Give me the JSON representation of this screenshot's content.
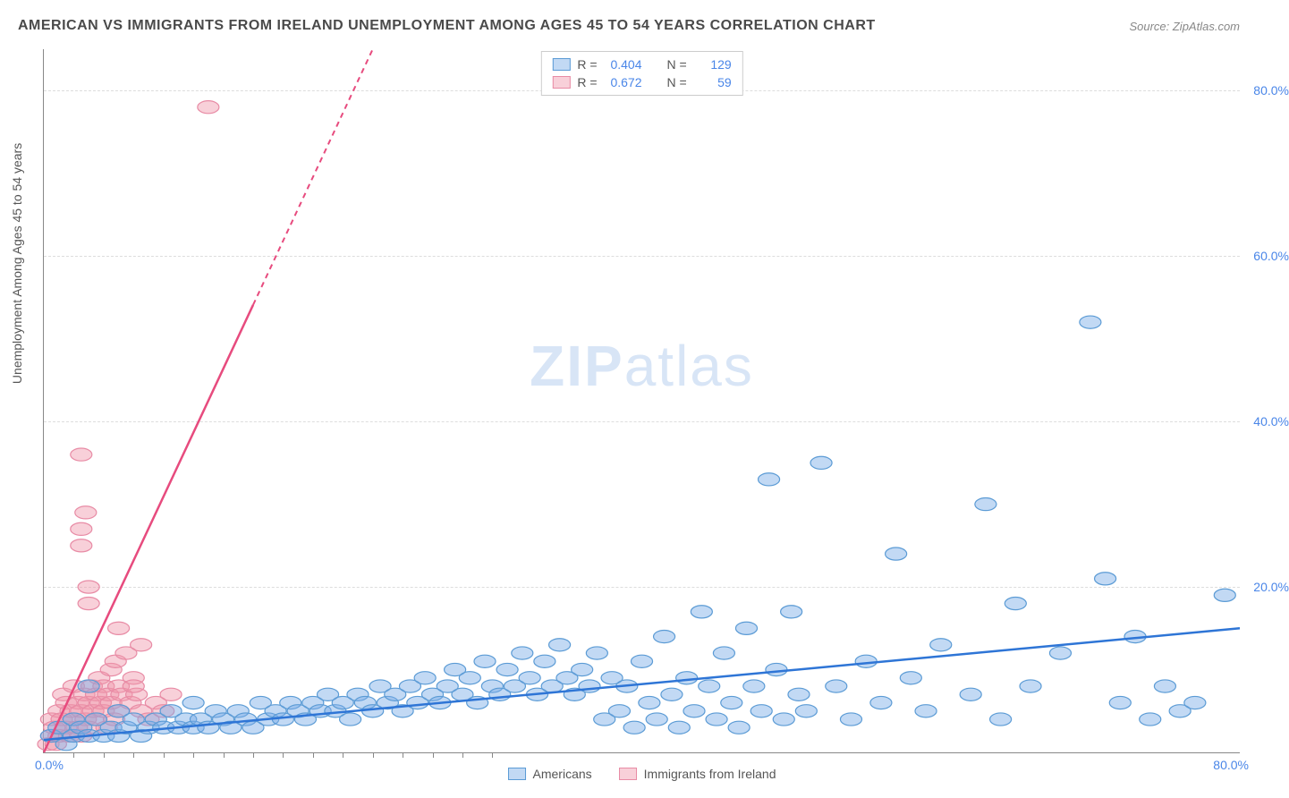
{
  "title": "AMERICAN VS IMMIGRANTS FROM IRELAND UNEMPLOYMENT AMONG AGES 45 TO 54 YEARS CORRELATION CHART",
  "source": "Source: ZipAtlas.com",
  "watermark_bold": "ZIP",
  "watermark_light": "atlas",
  "axes": {
    "y_title": "Unemployment Among Ages 45 to 54 years",
    "x_min": 0,
    "x_max": 80,
    "y_min": 0,
    "y_max": 85,
    "x_min_label": "0.0%",
    "x_max_label": "80.0%",
    "y_ticks": [
      20,
      40,
      60,
      80
    ],
    "y_tick_labels": [
      "20.0%",
      "40.0%",
      "60.0%",
      "80.0%"
    ],
    "x_minor_ticks": [
      2,
      4,
      6,
      8,
      10,
      12,
      14,
      16,
      18,
      20,
      22,
      24,
      26,
      28,
      30
    ],
    "grid_color": "#dddddd",
    "axis_color": "#888888",
    "tick_label_color": "#4a86e8"
  },
  "series": {
    "blue": {
      "label": "Americans",
      "R": "0.404",
      "N": "129",
      "marker_fill": "rgba(120,170,230,0.45)",
      "marker_stroke": "#5b9bd5",
      "line_color": "#2e75d6",
      "marker_radius": 9,
      "trend": {
        "x1": 0,
        "y1": 1.5,
        "x2": 80,
        "y2": 15,
        "dashed_from_x": null
      },
      "points": [
        [
          0.5,
          2
        ],
        [
          1,
          3
        ],
        [
          1.5,
          1
        ],
        [
          2,
          2
        ],
        [
          2,
          4
        ],
        [
          2.5,
          3
        ],
        [
          3,
          2
        ],
        [
          3,
          8
        ],
        [
          3.5,
          4
        ],
        [
          4,
          2
        ],
        [
          4.5,
          3
        ],
        [
          5,
          2
        ],
        [
          5,
          5
        ],
        [
          5.5,
          3
        ],
        [
          6,
          4
        ],
        [
          6.5,
          2
        ],
        [
          7,
          3
        ],
        [
          7.5,
          4
        ],
        [
          8,
          3
        ],
        [
          8.5,
          5
        ],
        [
          9,
          3
        ],
        [
          9.5,
          4
        ],
        [
          10,
          3
        ],
        [
          10,
          6
        ],
        [
          10.5,
          4
        ],
        [
          11,
          3
        ],
        [
          11.5,
          5
        ],
        [
          12,
          4
        ],
        [
          12.5,
          3
        ],
        [
          13,
          5
        ],
        [
          13.5,
          4
        ],
        [
          14,
          3
        ],
        [
          14.5,
          6
        ],
        [
          15,
          4
        ],
        [
          15.5,
          5
        ],
        [
          16,
          4
        ],
        [
          16.5,
          6
        ],
        [
          17,
          5
        ],
        [
          17.5,
          4
        ],
        [
          18,
          6
        ],
        [
          18.5,
          5
        ],
        [
          19,
          7
        ],
        [
          19.5,
          5
        ],
        [
          20,
          6
        ],
        [
          20.5,
          4
        ],
        [
          21,
          7
        ],
        [
          21.5,
          6
        ],
        [
          22,
          5
        ],
        [
          22.5,
          8
        ],
        [
          23,
          6
        ],
        [
          23.5,
          7
        ],
        [
          24,
          5
        ],
        [
          24.5,
          8
        ],
        [
          25,
          6
        ],
        [
          25.5,
          9
        ],
        [
          26,
          7
        ],
        [
          26.5,
          6
        ],
        [
          27,
          8
        ],
        [
          27.5,
          10
        ],
        [
          28,
          7
        ],
        [
          28.5,
          9
        ],
        [
          29,
          6
        ],
        [
          29.5,
          11
        ],
        [
          30,
          8
        ],
        [
          30.5,
          7
        ],
        [
          31,
          10
        ],
        [
          31.5,
          8
        ],
        [
          32,
          12
        ],
        [
          32.5,
          9
        ],
        [
          33,
          7
        ],
        [
          33.5,
          11
        ],
        [
          34,
          8
        ],
        [
          34.5,
          13
        ],
        [
          35,
          9
        ],
        [
          35.5,
          7
        ],
        [
          36,
          10
        ],
        [
          36.5,
          8
        ],
        [
          37,
          12
        ],
        [
          37.5,
          4
        ],
        [
          38,
          9
        ],
        [
          38.5,
          5
        ],
        [
          39,
          8
        ],
        [
          39.5,
          3
        ],
        [
          40,
          11
        ],
        [
          40.5,
          6
        ],
        [
          41,
          4
        ],
        [
          41.5,
          14
        ],
        [
          42,
          7
        ],
        [
          42.5,
          3
        ],
        [
          43,
          9
        ],
        [
          43.5,
          5
        ],
        [
          44,
          17
        ],
        [
          44.5,
          8
        ],
        [
          45,
          4
        ],
        [
          45.5,
          12
        ],
        [
          46,
          6
        ],
        [
          46.5,
          3
        ],
        [
          47,
          15
        ],
        [
          47.5,
          8
        ],
        [
          48,
          5
        ],
        [
          48.5,
          33
        ],
        [
          49,
          10
        ],
        [
          49.5,
          4
        ],
        [
          50,
          17
        ],
        [
          50.5,
          7
        ],
        [
          51,
          5
        ],
        [
          52,
          35
        ],
        [
          53,
          8
        ],
        [
          54,
          4
        ],
        [
          55,
          11
        ],
        [
          56,
          6
        ],
        [
          57,
          24
        ],
        [
          58,
          9
        ],
        [
          59,
          5
        ],
        [
          60,
          13
        ],
        [
          62,
          7
        ],
        [
          63,
          30
        ],
        [
          64,
          4
        ],
        [
          65,
          18
        ],
        [
          66,
          8
        ],
        [
          68,
          12
        ],
        [
          70,
          52
        ],
        [
          71,
          21
        ],
        [
          72,
          6
        ],
        [
          73,
          14
        ],
        [
          74,
          4
        ],
        [
          75,
          8
        ],
        [
          76,
          5
        ],
        [
          77,
          6
        ],
        [
          79,
          19
        ]
      ]
    },
    "pink": {
      "label": "Immigrants from Ireland",
      "R": "0.672",
      "N": "59",
      "marker_fill": "rgba(240,150,170,0.45)",
      "marker_stroke": "#e88ba5",
      "line_color": "#e74b7e",
      "marker_radius": 9,
      "trend": {
        "x1": 0,
        "y1": 0,
        "x2": 22,
        "y2": 85,
        "dashed_from_x": 14
      },
      "points": [
        [
          0.3,
          1
        ],
        [
          0.5,
          2
        ],
        [
          0.5,
          4
        ],
        [
          0.7,
          3
        ],
        [
          0.8,
          1
        ],
        [
          1,
          5
        ],
        [
          1,
          2
        ],
        [
          1.2,
          4
        ],
        [
          1.3,
          7
        ],
        [
          1.5,
          3
        ],
        [
          1.5,
          6
        ],
        [
          1.7,
          2
        ],
        [
          1.8,
          5
        ],
        [
          2,
          4
        ],
        [
          2,
          8
        ],
        [
          2.2,
          3
        ],
        [
          2.3,
          6
        ],
        [
          2.5,
          5
        ],
        [
          2.5,
          2
        ],
        [
          2.7,
          7
        ],
        [
          2.8,
          4
        ],
        [
          3,
          6
        ],
        [
          3,
          3
        ],
        [
          3.2,
          8
        ],
        [
          3.3,
          5
        ],
        [
          3.5,
          7
        ],
        [
          3.5,
          4
        ],
        [
          3.7,
          9
        ],
        [
          3.8,
          6
        ],
        [
          4,
          5
        ],
        [
          4,
          8
        ],
        [
          4.2,
          3
        ],
        [
          4.3,
          7
        ],
        [
          4.5,
          10
        ],
        [
          4.5,
          6
        ],
        [
          4.7,
          4
        ],
        [
          4.8,
          11
        ],
        [
          5,
          8
        ],
        [
          5,
          5
        ],
        [
          5.2,
          7
        ],
        [
          5.5,
          12
        ],
        [
          5.8,
          6
        ],
        [
          6,
          9
        ],
        [
          6.2,
          7
        ],
        [
          6.5,
          13
        ],
        [
          3,
          18
        ],
        [
          3,
          20
        ],
        [
          2.5,
          25
        ],
        [
          2.5,
          27
        ],
        [
          2.8,
          29
        ],
        [
          2.5,
          36
        ],
        [
          5,
          15
        ],
        [
          6,
          8
        ],
        [
          6.5,
          5
        ],
        [
          7,
          4
        ],
        [
          7.5,
          6
        ],
        [
          8,
          5
        ],
        [
          8.5,
          7
        ],
        [
          11,
          78
        ]
      ]
    }
  },
  "legend_stat_label_R": "R =",
  "legend_stat_label_N": "N ="
}
